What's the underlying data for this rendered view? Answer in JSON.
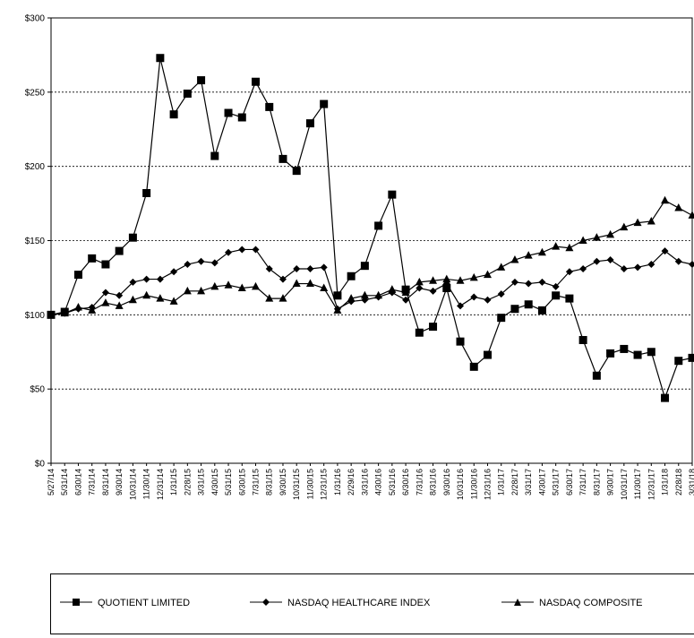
{
  "chart_data": {
    "type": "line",
    "title": "",
    "xlabel": "",
    "ylabel": "",
    "ylim": [
      0,
      300
    ],
    "yticks": [
      "$0",
      "$50",
      "$100",
      "$150",
      "$200",
      "$250",
      "$300"
    ],
    "ytick_values": [
      0,
      50,
      100,
      150,
      200,
      250,
      300
    ],
    "grid": "horizontal dashed",
    "legend_placement": "bottom",
    "categories": [
      "5/27/14",
      "5/31/14",
      "6/30/14",
      "7/31/14",
      "8/31/14",
      "9/30/14",
      "10/31/14",
      "11/30/14",
      "12/31/14",
      "1/31/15",
      "2/28/15",
      "3/31/15",
      "4/30/15",
      "5/31/15",
      "6/30/15",
      "7/31/15",
      "8/31/15",
      "9/30/15",
      "10/31/15",
      "11/30/15",
      "12/31/15",
      "1/31/16",
      "2/29/16",
      "3/31/16",
      "4/30/16",
      "5/31/16",
      "6/30/16",
      "7/31/16",
      "8/31/16",
      "9/30/16",
      "10/31/16",
      "11/30/16",
      "12/31/16",
      "1/31/17",
      "2/28/17",
      "3/31/17",
      "4/30/17",
      "5/31/17",
      "6/30/17",
      "7/31/17",
      "8/31/17",
      "9/30/17",
      "10/31/17",
      "11/30/17",
      "12/31/17",
      "1/31/18",
      "2/28/18",
      "3/31/18"
    ],
    "series": [
      {
        "name": "QUOTIENT LIMITED",
        "marker": "square",
        "values": [
          100,
          102,
          127,
          138,
          134,
          143,
          152,
          182,
          273,
          235,
          249,
          258,
          207,
          236,
          233,
          257,
          240,
          205,
          197,
          229,
          242,
          113,
          126,
          133,
          160,
          181,
          117,
          88,
          92,
          118,
          82,
          65,
          73,
          98,
          104,
          107,
          103,
          113,
          111,
          83,
          59,
          74,
          77,
          73,
          75,
          44,
          69,
          71
        ]
      },
      {
        "name": "NASDAQ HEALTHCARE INDEX",
        "marker": "diamond",
        "values": [
          100,
          101,
          104,
          105,
          115,
          113,
          122,
          124,
          124,
          129,
          134,
          136,
          135,
          142,
          144,
          144,
          131,
          124,
          131,
          131,
          132,
          104,
          109,
          110,
          112,
          115,
          110,
          118,
          116,
          121,
          106,
          112,
          110,
          114,
          122,
          121,
          122,
          119,
          129,
          131,
          136,
          137,
          131,
          132,
          134,
          143,
          136,
          134
        ]
      },
      {
        "name": "NASDAQ COMPOSITE",
        "marker": "triangle",
        "values": [
          100,
          101,
          105,
          103,
          108,
          106,
          110,
          113,
          111,
          109,
          116,
          116,
          119,
          120,
          118,
          119,
          111,
          111,
          121,
          121,
          118,
          103,
          111,
          113,
          113,
          117,
          115,
          122,
          123,
          124,
          123,
          125,
          127,
          132,
          137,
          140,
          142,
          146,
          145,
          150,
          152,
          154,
          159,
          162,
          163,
          177,
          172,
          167
        ]
      }
    ]
  }
}
